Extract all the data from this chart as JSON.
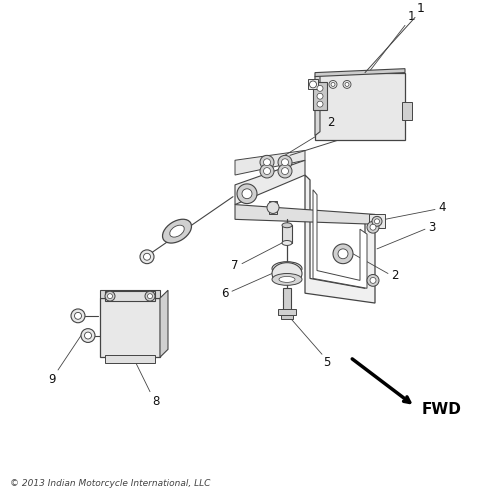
{
  "background_color": "#ffffff",
  "copyright_text": "© 2013 Indian Motorcycle International, LLC",
  "fwd_text": "FWD",
  "line_color": "#444444",
  "text_color": "#111111",
  "light_fill": "#e8e8e8",
  "mid_fill": "#d0d0d0"
}
